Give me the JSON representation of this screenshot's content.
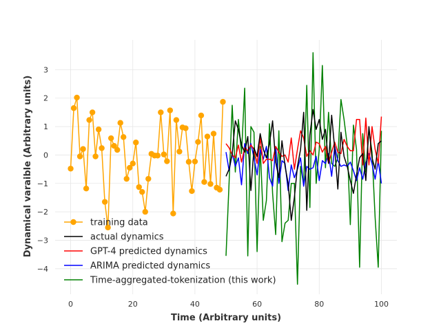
{
  "chart_data": {
    "type": "line",
    "title": "",
    "xlabel": "Time (Arbitrary units)",
    "ylabel": "Dynamical varaible (Arbitrary units)",
    "xlim": [
      -5,
      105
    ],
    "ylim": [
      -4.9,
      4.05
    ],
    "xticks": [
      0,
      20,
      40,
      60,
      80,
      100
    ],
    "yticks": [
      -4,
      -3,
      -2,
      -1,
      0,
      1,
      2,
      3
    ],
    "grid": true,
    "legend_position": "lower-left",
    "series": [
      {
        "name": "training data",
        "color": "#FFA500",
        "marker": "circle",
        "x": [
          0,
          1,
          2,
          3,
          4,
          5,
          6,
          7,
          8,
          9,
          10,
          11,
          12,
          13,
          14,
          15,
          16,
          17,
          18,
          19,
          20,
          21,
          22,
          23,
          24,
          25,
          26,
          27,
          28,
          29,
          30,
          31,
          32,
          33,
          34,
          35,
          36,
          37,
          38,
          39,
          40,
          41,
          42,
          43,
          44,
          45,
          46,
          47,
          48,
          49
        ],
        "y": [
          -0.48,
          1.65,
          2.02,
          -0.05,
          0.21,
          -1.18,
          1.23,
          1.5,
          -0.05,
          0.9,
          0.24,
          -1.65,
          -2.55,
          0.59,
          0.32,
          0.18,
          1.13,
          0.63,
          -0.84,
          -0.45,
          -0.3,
          0.44,
          -1.13,
          -1.3,
          -2.0,
          -0.84,
          0.04,
          -0.02,
          -0.02,
          1.5,
          0.02,
          -0.22,
          1.57,
          -2.06,
          1.23,
          0.12,
          0.97,
          0.94,
          -0.24,
          -1.27,
          -0.23,
          0.46,
          1.39,
          -0.95,
          0.65,
          -1.02,
          0.75,
          -1.15,
          -1.22,
          1.87
        ]
      },
      {
        "name": "actual dynamics",
        "color": "#000000",
        "x": [
          50,
          51,
          52,
          53,
          54,
          55,
          56,
          57,
          58,
          59,
          60,
          61,
          62,
          63,
          64,
          65,
          66,
          67,
          68,
          69,
          70,
          71,
          72,
          73,
          74,
          75,
          76,
          77,
          78,
          79,
          80,
          81,
          82,
          83,
          84,
          85,
          86,
          87,
          88,
          89,
          90,
          91,
          92,
          93,
          94,
          95,
          96,
          97,
          98,
          99,
          100
        ],
        "y": [
          -0.75,
          -0.5,
          0.05,
          1.2,
          0.9,
          0.35,
          0.1,
          0.65,
          -1.25,
          0.25,
          -0.05,
          0.75,
          0.2,
          -0.1,
          0.4,
          1.2,
          -0.25,
          -0.8,
          0.5,
          -0.4,
          -1.0,
          -2.3,
          -1.5,
          -0.4,
          0.2,
          1.5,
          -1.95,
          0.7,
          1.6,
          0.9,
          1.25,
          0.55,
          0.9,
          -0.3,
          1.4,
          0.2,
          -1.2,
          0.8,
          -0.05,
          -0.4,
          -0.9,
          -1.35,
          -0.7,
          -0.1,
          0.05,
          -0.9,
          1.0,
          -0.1,
          -0.5,
          0.4,
          0.5
        ]
      },
      {
        "name": "GPT-4 predicted dynamics",
        "color": "#FF0000",
        "x": [
          50,
          51,
          52,
          53,
          54,
          55,
          56,
          57,
          58,
          59,
          60,
          61,
          62,
          63,
          64,
          65,
          66,
          67,
          68,
          69,
          70,
          71,
          72,
          73,
          74,
          75,
          76,
          77,
          78,
          79,
          80,
          81,
          82,
          83,
          84,
          85,
          86,
          87,
          88,
          89,
          90,
          91,
          92,
          93,
          94,
          95,
          96,
          97,
          98,
          99,
          100
        ],
        "y": [
          0.4,
          0.25,
          0.0,
          -0.1,
          0.35,
          -0.25,
          0.25,
          0.15,
          0.35,
          0.2,
          -0.3,
          0.6,
          -0.3,
          -0.15,
          -0.15,
          -0.2,
          0.3,
          0.1,
          -0.05,
          0.0,
          -0.25,
          0.6,
          -0.5,
          0.2,
          0.85,
          0.6,
          -0.05,
          0.15,
          0.0,
          0.45,
          0.4,
          0.1,
          0.3,
          -0.3,
          0.1,
          0.45,
          0.1,
          0.05,
          0.55,
          0.3,
          0.15,
          0.15,
          1.25,
          1.25,
          -0.35,
          1.3,
          -0.35,
          1.0,
          0.2,
          -0.3,
          1.35
        ]
      },
      {
        "name": "ARIMA predicted dynamics",
        "color": "#0000FF",
        "x": [
          50,
          51,
          52,
          53,
          54,
          55,
          56,
          57,
          58,
          59,
          60,
          61,
          62,
          63,
          64,
          65,
          66,
          67,
          68,
          69,
          70,
          71,
          72,
          73,
          74,
          75,
          76,
          77,
          78,
          79,
          80,
          81,
          82,
          83,
          84,
          85,
          86,
          87,
          88,
          89,
          90,
          91,
          92,
          93,
          94,
          95,
          96,
          97,
          98,
          99,
          100
        ],
        "y": [
          0.1,
          -0.55,
          0.05,
          -0.4,
          -0.1,
          -1.05,
          0.4,
          0.05,
          0.4,
          -0.1,
          -0.7,
          0.2,
          -0.15,
          0.3,
          -0.8,
          -1.1,
          0.3,
          -1.0,
          -0.2,
          -0.3,
          -1.25,
          -0.35,
          -0.8,
          -0.5,
          -0.1,
          -1.1,
          -0.4,
          -0.5,
          -0.45,
          -0.05,
          -0.9,
          -0.2,
          -0.3,
          0.05,
          -0.75,
          0.3,
          -0.2,
          -0.4,
          -0.35,
          -0.4,
          -0.25,
          -0.55,
          -0.9,
          -0.45,
          -0.85,
          -0.3,
          0.05,
          -0.3,
          -0.85,
          -0.2,
          -1.0
        ]
      },
      {
        "name": "Time-aggregated-tokenization (this work)",
        "color": "#008000",
        "x": [
          50,
          51,
          52,
          53,
          54,
          55,
          56,
          57,
          58,
          59,
          60,
          61,
          62,
          63,
          64,
          65,
          66,
          67,
          68,
          69,
          70,
          71,
          72,
          73,
          74,
          75,
          76,
          77,
          78,
          79,
          80,
          81,
          82,
          83,
          84,
          85,
          86,
          87,
          88,
          89,
          90,
          91,
          92,
          93,
          94,
          95,
          96,
          97,
          98,
          99,
          100
        ],
        "y": [
          -3.55,
          -0.95,
          1.75,
          -0.6,
          1.25,
          0.05,
          2.35,
          -3.55,
          1.0,
          0.8,
          -3.4,
          0.3,
          -2.3,
          -1.6,
          1.1,
          -1.35,
          -2.8,
          0.85,
          -3.05,
          -2.4,
          -2.3,
          -1.0,
          -1.0,
          -4.55,
          -0.4,
          -1.05,
          2.45,
          -1.85,
          3.6,
          -1.0,
          0.2,
          3.15,
          -0.45,
          1.5,
          -0.3,
          -0.4,
          -0.1,
          1.95,
          1.25,
          0.35,
          -2.45,
          1.05,
          0.2,
          -3.95,
          0.75,
          -0.6,
          0.9,
          0.1,
          -2.2,
          -3.95,
          0.85
        ]
      }
    ]
  }
}
